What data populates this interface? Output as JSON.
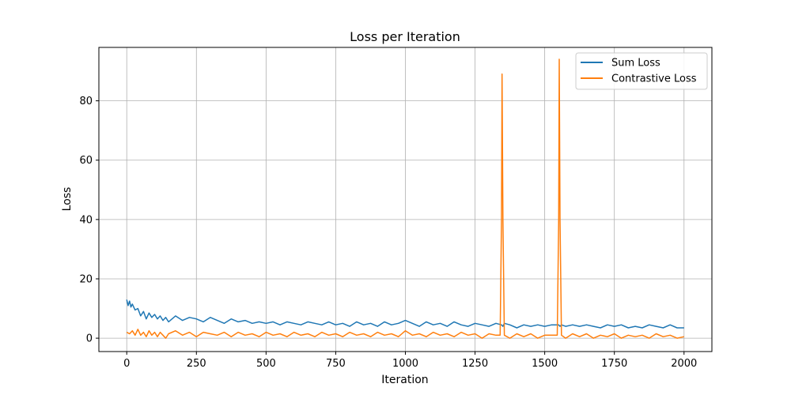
{
  "chart_data": {
    "type": "line",
    "title": "Loss per Iteration",
    "xlabel": "Iteration",
    "ylabel": "Loss",
    "xlim": [
      -100,
      2100
    ],
    "ylim": [
      -4.5,
      98
    ],
    "xticks": [
      0,
      250,
      500,
      750,
      1000,
      1250,
      1500,
      1750,
      2000
    ],
    "yticks": [
      0,
      20,
      40,
      60,
      80
    ],
    "grid": true,
    "legend_position": "top-right",
    "series": [
      {
        "name": "Sum Loss",
        "color": "#1f77b4",
        "x": [
          0,
          5,
          10,
          15,
          20,
          30,
          40,
          50,
          60,
          70,
          80,
          90,
          100,
          110,
          120,
          130,
          140,
          150,
          175,
          200,
          225,
          250,
          275,
          300,
          325,
          350,
          375,
          400,
          425,
          450,
          475,
          500,
          525,
          550,
          575,
          600,
          625,
          650,
          675,
          700,
          725,
          750,
          775,
          800,
          825,
          850,
          875,
          900,
          925,
          950,
          975,
          1000,
          1025,
          1050,
          1075,
          1100,
          1125,
          1150,
          1175,
          1200,
          1225,
          1250,
          1275,
          1300,
          1325,
          1345,
          1350,
          1355,
          1375,
          1400,
          1425,
          1450,
          1475,
          1500,
          1525,
          1550,
          1555,
          1560,
          1575,
          1600,
          1625,
          1650,
          1675,
          1700,
          1725,
          1750,
          1775,
          1800,
          1825,
          1850,
          1875,
          1900,
          1925,
          1950,
          1975,
          2000
        ],
        "y": [
          13,
          11,
          12.5,
          10.5,
          11.5,
          9.5,
          10,
          7.5,
          9,
          6.5,
          8.5,
          7,
          8,
          6.5,
          7.5,
          6,
          7,
          5.5,
          7.5,
          6,
          7,
          6.5,
          5.5,
          7,
          6,
          5,
          6.5,
          5.5,
          6,
          5,
          5.5,
          5,
          5.5,
          4.5,
          5.5,
          5,
          4.5,
          5.5,
          5,
          4.5,
          5.5,
          4.5,
          5,
          4,
          5.5,
          4.5,
          5,
          4,
          5.5,
          4.5,
          5,
          6,
          5,
          4,
          5.5,
          4.5,
          5,
          4,
          5.5,
          4.5,
          4,
          5,
          4.5,
          4,
          5,
          4.5,
          4,
          5,
          4.5,
          3.5,
          4.5,
          4,
          4.5,
          4,
          4.5,
          4.5,
          4,
          4.5,
          4,
          4.5,
          4,
          4.5,
          4,
          3.5,
          4.5,
          4,
          4.5,
          3.5,
          4,
          3.5,
          4.5,
          4,
          3.5,
          4.5,
          3.5,
          3.5
        ]
      },
      {
        "name": "Contrastive Loss",
        "color": "#ff7f0e",
        "x": [
          0,
          10,
          20,
          30,
          40,
          50,
          60,
          70,
          80,
          90,
          100,
          110,
          120,
          130,
          140,
          150,
          175,
          200,
          225,
          250,
          275,
          300,
          325,
          350,
          375,
          400,
          425,
          450,
          475,
          500,
          525,
          550,
          575,
          600,
          625,
          650,
          675,
          700,
          725,
          750,
          775,
          800,
          825,
          850,
          875,
          900,
          925,
          950,
          975,
          1000,
          1025,
          1050,
          1075,
          1100,
          1125,
          1150,
          1175,
          1200,
          1225,
          1250,
          1275,
          1300,
          1325,
          1340,
          1345,
          1347,
          1350,
          1355,
          1375,
          1400,
          1425,
          1450,
          1475,
          1500,
          1525,
          1545,
          1550,
          1552,
          1555,
          1560,
          1575,
          1600,
          1625,
          1650,
          1675,
          1700,
          1725,
          1750,
          1775,
          1800,
          1825,
          1850,
          1875,
          1900,
          1925,
          1950,
          1975,
          2000
        ],
        "y": [
          2,
          1.5,
          2.5,
          1,
          3,
          1,
          2,
          0.5,
          2.5,
          1,
          2,
          0.5,
          2,
          1,
          0,
          1.5,
          2.5,
          1,
          2,
          0.5,
          2,
          1.5,
          1,
          2,
          0.5,
          2,
          1,
          1.5,
          0.5,
          2,
          1,
          1.5,
          0.5,
          2,
          1,
          1.5,
          0.5,
          2,
          1,
          1.5,
          0.5,
          2,
          1,
          1.5,
          0.5,
          2,
          1,
          1.5,
          0.5,
          2.5,
          1,
          1.5,
          0.5,
          2,
          1,
          1.5,
          0.5,
          2,
          1,
          1.5,
          0,
          1.5,
          1,
          1,
          40,
          89,
          40,
          1,
          0,
          1.5,
          0.5,
          1.5,
          0,
          1,
          1,
          1,
          40,
          94,
          40,
          1,
          0,
          1.5,
          0.5,
          1.5,
          0,
          1,
          0.5,
          1.5,
          0,
          1,
          0.5,
          1,
          0,
          1.5,
          0.5,
          1,
          0,
          0.5
        ]
      }
    ]
  }
}
